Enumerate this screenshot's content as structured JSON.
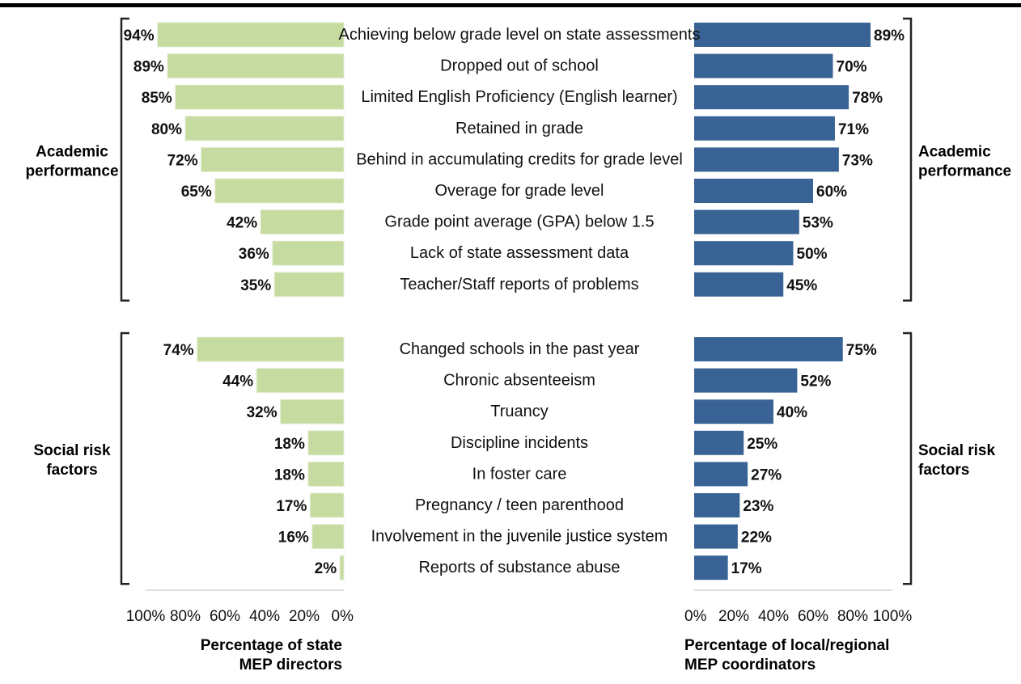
{
  "chart_data": {
    "type": "bar",
    "orientation": "horizontal",
    "layout": "back-to-back",
    "series": [
      {
        "name": "Percentage of state MEP directors",
        "color": "#c5dba0",
        "values": [
          94,
          89,
          85,
          80,
          72,
          65,
          42,
          36,
          35,
          74,
          44,
          32,
          18,
          18,
          17,
          16,
          2
        ],
        "axis_title": [
          "Percentage of state",
          "MEP directors"
        ]
      },
      {
        "name": "Percentage of local/regional MEP coordinators",
        "color": "#3a6395",
        "values": [
          89,
          70,
          78,
          71,
          73,
          60,
          53,
          50,
          45,
          75,
          52,
          40,
          25,
          27,
          23,
          22,
          17
        ],
        "axis_title": [
          "Percentage of local/regional",
          "MEP coordinators"
        ]
      }
    ],
    "groups": [
      {
        "label": [
          "Academic",
          "performance"
        ],
        "categories": [
          "Achieving below grade level on state assessments",
          "Dropped out of school",
          "Limited English Proficiency (English learner)",
          "Retained in grade",
          "Behind in accumulating credits for grade level",
          "Overage for grade level",
          "Grade point average (GPA) below 1.5",
          "Lack of state assessment data",
          "Teacher/Staff reports of problems"
        ]
      },
      {
        "label": [
          "Social risk",
          "factors"
        ],
        "categories": [
          "Changed schools in the past year",
          "Chronic absenteeism",
          "Truancy",
          "Discipline incidents",
          "In foster care",
          "Pregnancy / teen parenthood",
          "Involvement in the juvenile justice system",
          "Reports of substance abuse"
        ]
      }
    ],
    "left_ticks": [
      "100%",
      "80%",
      "60%",
      "40%",
      "20%",
      "0%"
    ],
    "right_ticks": [
      "0%",
      "20%",
      "40%",
      "60%",
      "80%",
      "100%"
    ],
    "xlim": [
      0,
      100
    ]
  }
}
